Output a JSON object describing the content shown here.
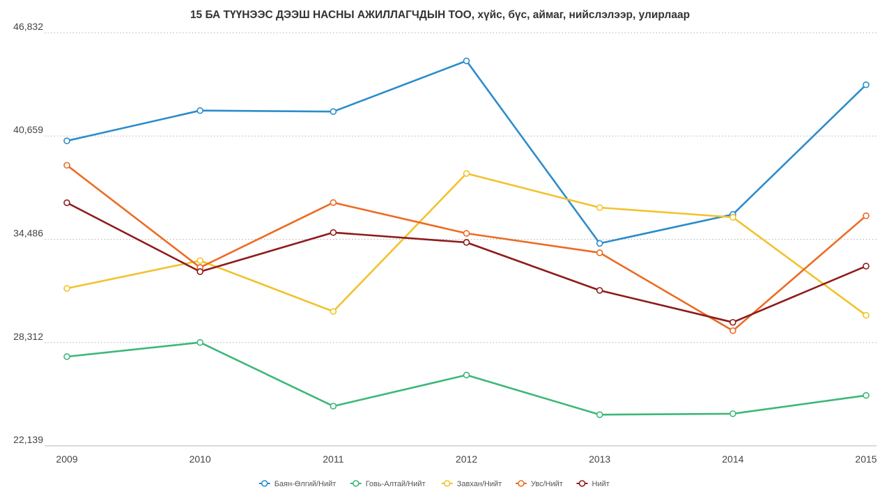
{
  "chart_data": {
    "type": "line",
    "title": "15 БА ТҮҮНЭЭС ДЭЭШ НАСНЫ АЖИЛЛАГЧДЫН ТОО, хүйс, бүс, аймаг, нийслэлээр, улирлаар",
    "xlabel": "",
    "ylabel": "",
    "categories": [
      "2009",
      "2010",
      "2011",
      "2012",
      "2013",
      "2014",
      "2015"
    ],
    "ylim": [
      22139,
      46832
    ],
    "yticks": [
      22139,
      28312,
      34486,
      40659,
      46832
    ],
    "ytick_labels": [
      "22,139",
      "28,312",
      "34,486",
      "40,659",
      "46,832"
    ],
    "grid": "horizontal dotted",
    "legend_position": "bottom-center",
    "series": [
      {
        "name": "Баян-Өлгий/Нийт",
        "color": "#2b8ccb",
        "values": [
          40370,
          42180,
          42120,
          45150,
          34240,
          35970,
          43720
        ]
      },
      {
        "name": "Говь-Алтай/Нийт",
        "color": "#3cb878",
        "values": [
          27470,
          28320,
          24510,
          26370,
          24000,
          24060,
          25150
        ]
      },
      {
        "name": "Завхан/Нийт",
        "color": "#f2c22c",
        "values": [
          31550,
          33210,
          30170,
          38420,
          36380,
          35800,
          29940
        ]
      },
      {
        "name": "Увс/Нийт",
        "color": "#ec6b22",
        "values": [
          38910,
          32800,
          36680,
          34840,
          33680,
          29020,
          35890
        ]
      },
      {
        "name": "Нийт",
        "color": "#8e1b1b",
        "values": [
          36670,
          32550,
          34890,
          34300,
          31430,
          29520,
          32880
        ]
      }
    ]
  }
}
